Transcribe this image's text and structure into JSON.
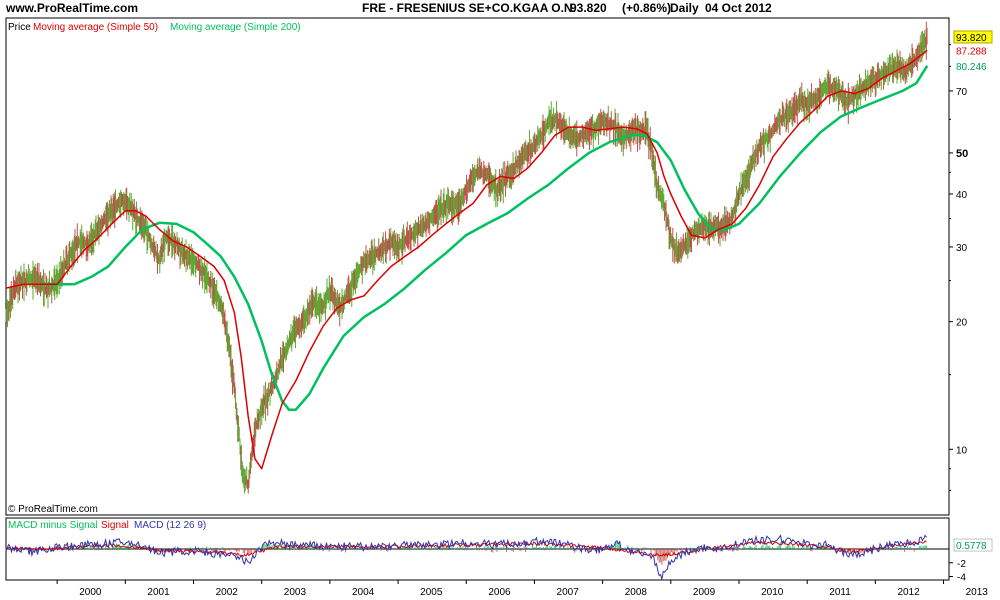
{
  "header": {
    "site": "www.ProRealTime.com",
    "instrument": "FRE - FRESENIUS SE+CO.KGAA O.N.",
    "price": "93.820",
    "change": "(+0.86%)",
    "period": "Daily",
    "date": "04 Oct 2012"
  },
  "copyright": "© ProRealTime.com",
  "colors": {
    "price_up": "#5fa832",
    "price_down": "#c0504d",
    "ma50": "#dd0000",
    "ma200": "#00c060",
    "macd": "#3333aa",
    "signal": "#dd0000",
    "hist": "#00c060",
    "label_price_bg": "#ffff00"
  },
  "chart_data": [
    {
      "type": "line",
      "panel": "price",
      "legend": [
        {
          "text": "Price",
          "color": "#000000"
        },
        {
          "text": "Moving average (Simple 50)",
          "color": "#dd0000"
        },
        {
          "text": "Moving average (Simple 200)",
          "color": "#00c060"
        }
      ],
      "y_scale": "log",
      "ylim": [
        7,
        104
      ],
      "xlim": [
        1999.25,
        2013.08
      ],
      "x_ticks": [
        2000,
        2001,
        2002,
        2003,
        2004,
        2005,
        2006,
        2007,
        2008,
        2009,
        2010,
        2011,
        2012,
        2013
      ],
      "y_ticks": [
        {
          "value": 10,
          "label": "10"
        },
        {
          "value": 20,
          "label": "20"
        },
        {
          "value": 30,
          "label": "30"
        },
        {
          "value": 40,
          "label": "40"
        },
        {
          "value": 50,
          "label": "50"
        },
        {
          "value": 70,
          "label": "70"
        }
      ],
      "last_values": [
        {
          "label": "93.820",
          "value": 93.82,
          "color": "#000000",
          "bg": "#ffff00"
        },
        {
          "label": "87.288",
          "value": 87.288,
          "color": "#dd0000",
          "bg": "#ffffff"
        },
        {
          "label": "80.246",
          "value": 80.246,
          "color": "#00a050",
          "bg": "#ffffff"
        }
      ],
      "series": [
        {
          "name": "Price",
          "x": [
            1999.25,
            1999.4,
            1999.55,
            1999.7,
            1999.85,
            2000.0,
            2000.15,
            2000.3,
            2000.45,
            2000.6,
            2000.75,
            2000.9,
            2001.0,
            2001.1,
            2001.2,
            2001.3,
            2001.4,
            2001.5,
            2001.6,
            2001.75,
            2001.9,
            2002.0,
            2002.15,
            2002.3,
            2002.45,
            2002.55,
            2002.65,
            2002.72,
            2002.8,
            2002.9,
            2003.0,
            2003.1,
            2003.2,
            2003.3,
            2003.45,
            2003.6,
            2003.75,
            2003.9,
            2004.0,
            2004.15,
            2004.3,
            2004.45,
            2004.6,
            2004.75,
            2004.9,
            2005.0,
            2005.15,
            2005.3,
            2005.45,
            2005.6,
            2005.75,
            2005.9,
            2006.0,
            2006.15,
            2006.3,
            2006.45,
            2006.6,
            2006.75,
            2006.9,
            2007.0,
            2007.1,
            2007.2,
            2007.3,
            2007.45,
            2007.6,
            2007.75,
            2007.9,
            2008.0,
            2008.15,
            2008.3,
            2008.45,
            2008.55,
            2008.65,
            2008.72,
            2008.8,
            2008.9,
            2009.0,
            2009.1,
            2009.2,
            2009.3,
            2009.45,
            2009.6,
            2009.75,
            2009.9,
            2010.0,
            2010.15,
            2010.3,
            2010.45,
            2010.6,
            2010.75,
            2010.9,
            2011.0,
            2011.15,
            2011.3,
            2011.45,
            2011.6,
            2011.75,
            2011.9,
            2012.0,
            2012.15,
            2012.3,
            2012.45,
            2012.6,
            2012.76
          ],
          "values": [
            20.5,
            24.5,
            25.0,
            25.5,
            23.5,
            25.0,
            28.0,
            31.0,
            30.5,
            33.0,
            36.0,
            38.0,
            38.5,
            37.0,
            34.5,
            33.0,
            30.0,
            28.0,
            31.5,
            30.5,
            28.5,
            28.0,
            26.0,
            24.0,
            20.5,
            16.0,
            11.5,
            8.8,
            8.2,
            11.0,
            12.5,
            13.5,
            14.5,
            16.5,
            18.5,
            20.0,
            22.0,
            22.0,
            23.5,
            21.5,
            24.0,
            27.0,
            28.5,
            29.5,
            31.0,
            30.0,
            31.5,
            33.0,
            34.5,
            36.5,
            38.0,
            37.5,
            41.0,
            45.0,
            44.5,
            41.0,
            44.0,
            47.5,
            50.5,
            52.0,
            55.0,
            59.0,
            60.0,
            57.0,
            54.0,
            56.0,
            57.0,
            59.0,
            58.5,
            54.0,
            57.0,
            56.0,
            56.5,
            50.0,
            42.0,
            37.5,
            31.5,
            29.0,
            30.0,
            32.0,
            33.5,
            33.5,
            33.5,
            35.0,
            40.0,
            45.0,
            52.0,
            55.0,
            60.0,
            62.0,
            66.0,
            65.0,
            68.0,
            72.0,
            70.0,
            66.0,
            70.0,
            73.0,
            75.0,
            78.0,
            80.0,
            78.0,
            84.0,
            93.82
          ]
        },
        {
          "name": "Moving average (Simple 50)",
          "x": [
            1999.25,
            1999.5,
            1999.75,
            2000.0,
            2000.2,
            2000.4,
            2000.6,
            2000.8,
            2001.0,
            2001.15,
            2001.3,
            2001.5,
            2001.7,
            2001.9,
            2002.1,
            2002.3,
            2002.45,
            2002.6,
            2002.7,
            2002.8,
            2002.9,
            2003.0,
            2003.15,
            2003.3,
            2003.5,
            2003.7,
            2003.9,
            2004.1,
            2004.3,
            2004.5,
            2004.7,
            2004.9,
            2005.1,
            2005.3,
            2005.5,
            2005.7,
            2005.9,
            2006.1,
            2006.3,
            2006.5,
            2006.7,
            2006.9,
            2007.1,
            2007.3,
            2007.5,
            2007.7,
            2007.9,
            2008.1,
            2008.3,
            2008.5,
            2008.65,
            2008.8,
            2008.9,
            2009.0,
            2009.15,
            2009.3,
            2009.5,
            2009.7,
            2009.9,
            2010.1,
            2010.3,
            2010.5,
            2010.7,
            2010.9,
            2011.1,
            2011.3,
            2011.5,
            2011.7,
            2011.9,
            2012.1,
            2012.3,
            2012.5,
            2012.76
          ],
          "values": [
            24.0,
            24.5,
            24.5,
            24.5,
            27.0,
            29.5,
            31.5,
            34.0,
            36.5,
            36.5,
            35.5,
            33.0,
            31.0,
            30.0,
            28.5,
            27.0,
            25.0,
            21.0,
            16.5,
            12.0,
            9.5,
            9.0,
            10.8,
            12.8,
            14.5,
            17.0,
            19.5,
            21.5,
            22.5,
            23.0,
            25.0,
            27.0,
            28.5,
            30.0,
            32.0,
            34.0,
            36.0,
            38.0,
            42.0,
            44.0,
            43.5,
            46.0,
            50.0,
            55.0,
            57.5,
            57.5,
            56.5,
            57.0,
            57.5,
            57.0,
            55.5,
            50.0,
            44.0,
            40.0,
            35.5,
            32.0,
            31.5,
            33.0,
            34.0,
            37.0,
            42.0,
            49.0,
            54.0,
            59.0,
            63.0,
            68.0,
            70.0,
            69.0,
            71.0,
            75.0,
            78.0,
            81.0,
            87.288
          ]
        },
        {
          "name": "Moving average (Simple 200)",
          "x": [
            1999.75,
            2000.0,
            2000.25,
            2000.5,
            2000.75,
            2001.0,
            2001.25,
            2001.5,
            2001.75,
            2002.0,
            2002.2,
            2002.4,
            2002.6,
            2002.8,
            2003.0,
            2003.15,
            2003.3,
            2003.4,
            2003.5,
            2003.7,
            2003.9,
            2004.2,
            2004.5,
            2004.8,
            2005.1,
            2005.4,
            2005.7,
            2006.0,
            2006.3,
            2006.6,
            2006.9,
            2007.2,
            2007.5,
            2007.8,
            2008.1,
            2008.4,
            2008.6,
            2008.8,
            2009.0,
            2009.2,
            2009.4,
            2009.6,
            2009.8,
            2010.0,
            2010.3,
            2010.6,
            2010.9,
            2011.2,
            2011.5,
            2011.8,
            2012.1,
            2012.4,
            2012.6,
            2012.76
          ],
          "values": [
            24.5,
            24.5,
            24.5,
            25.5,
            27.0,
            30.0,
            33.0,
            34.2,
            34.0,
            32.5,
            30.5,
            28.5,
            25.5,
            22.0,
            18.0,
            15.0,
            13.0,
            12.4,
            12.4,
            13.5,
            15.5,
            18.5,
            20.5,
            22.0,
            24.0,
            26.5,
            29.0,
            32.0,
            34.0,
            36.0,
            39.0,
            42.0,
            46.0,
            50.0,
            53.0,
            55.0,
            55.0,
            53.0,
            48.0,
            41.0,
            36.0,
            33.0,
            33.0,
            34.0,
            38.0,
            44.0,
            50.0,
            56.0,
            61.0,
            64.0,
            67.0,
            70.0,
            73.0,
            80.246
          ]
        }
      ]
    },
    {
      "type": "line",
      "panel": "macd",
      "legend": [
        {
          "text": "MACD minus Signal",
          "color": "#00c060"
        },
        {
          "text": "Signal",
          "color": "#dd0000"
        },
        {
          "text": "MACD (12 26 9)",
          "color": "#3333aa"
        }
      ],
      "ylim": [
        -4.5,
        4.5
      ],
      "y_ticks": [
        {
          "value": -2,
          "label": "-2"
        },
        {
          "value": -4,
          "label": "-4"
        }
      ],
      "last_values": [
        {
          "label": "0.5778",
          "value": 0.5778,
          "color": "#00a050",
          "bg": "#ffffff"
        }
      ],
      "series": [
        {
          "name": "MACD (12 26 9)",
          "x": [
            1999.25,
            1999.6,
            2000.0,
            2000.5,
            2000.9,
            2001.2,
            2001.5,
            2001.8,
            2002.1,
            2002.4,
            2002.6,
            2002.8,
            2002.9,
            2003.1,
            2003.3,
            2003.6,
            2004.0,
            2004.5,
            2005.0,
            2005.5,
            2006.0,
            2006.4,
            2006.8,
            2007.1,
            2007.5,
            2007.9,
            2008.2,
            2008.5,
            2008.75,
            2008.85,
            2009.0,
            2009.2,
            2009.5,
            2009.8,
            2010.1,
            2010.4,
            2010.7,
            2011.0,
            2011.3,
            2011.6,
            2011.9,
            2012.2,
            2012.5,
            2012.76
          ],
          "values": [
            0.2,
            -0.4,
            0.3,
            0.6,
            0.9,
            0.7,
            -0.6,
            -0.3,
            -0.4,
            -0.8,
            -1.1,
            -2.0,
            -0.8,
            1.0,
            0.8,
            0.5,
            0.4,
            0.3,
            0.5,
            0.6,
            0.9,
            0.7,
            0.8,
            1.2,
            0.6,
            -0.3,
            0.8,
            -0.7,
            -1.2,
            -4.2,
            -1.8,
            -0.5,
            0.2,
            0.1,
            1.1,
            1.3,
            1.4,
            0.7,
            0.6,
            -1.0,
            -0.3,
            0.6,
            0.9,
            1.6
          ]
        },
        {
          "name": "Signal",
          "x": [
            1999.25,
            2000.0,
            2000.8,
            2001.5,
            2002.3,
            2002.8,
            2003.2,
            2004.0,
            2005.0,
            2006.0,
            2007.0,
            2008.0,
            2008.8,
            2009.1,
            2009.6,
            2010.3,
            2011.0,
            2011.7,
            2012.3,
            2012.76
          ],
          "values": [
            0.0,
            0.1,
            0.6,
            -0.2,
            -0.5,
            -0.9,
            0.3,
            0.3,
            0.4,
            0.6,
            0.8,
            0.2,
            -0.9,
            -0.7,
            0.1,
            1.0,
            0.6,
            -0.4,
            0.6,
            1.0
          ]
        }
      ]
    }
  ],
  "x_tick_labels": [
    "2000",
    "2001",
    "2002",
    "2003",
    "2004",
    "2005",
    "2006",
    "2007",
    "2008",
    "2009",
    "2010",
    "2011",
    "2012",
    "2013"
  ]
}
